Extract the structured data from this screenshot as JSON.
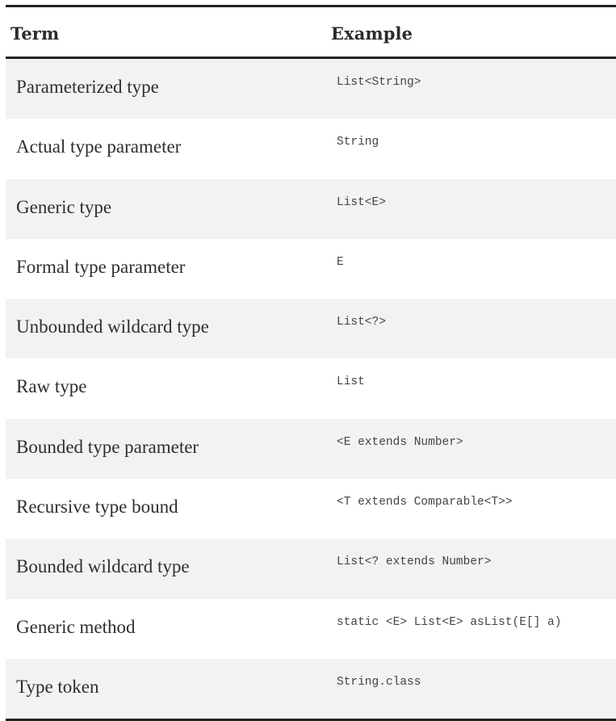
{
  "header": {
    "term": "Term",
    "example": "Example"
  },
  "rows": [
    {
      "term": "Parameterized type",
      "example": "List<String>"
    },
    {
      "term": "Actual type parameter",
      "example": "String"
    },
    {
      "term": "Generic type",
      "example": "List<E>"
    },
    {
      "term": "Formal type parameter",
      "example": "E"
    },
    {
      "term": "Unbounded wildcard type",
      "example": "List<?>"
    },
    {
      "term": "Raw type",
      "example": "List"
    },
    {
      "term": "Bounded type parameter",
      "example": "<E extends Number>"
    },
    {
      "term": "Recursive type bound",
      "example": "<T extends Comparable<T>>"
    },
    {
      "term": "Bounded wildcard type",
      "example": "List<? extends Number>"
    },
    {
      "term": "Generic method",
      "example": "static <E> List<E> asList(E[] a)"
    },
    {
      "term": "Type token",
      "example": "String.class"
    }
  ]
}
